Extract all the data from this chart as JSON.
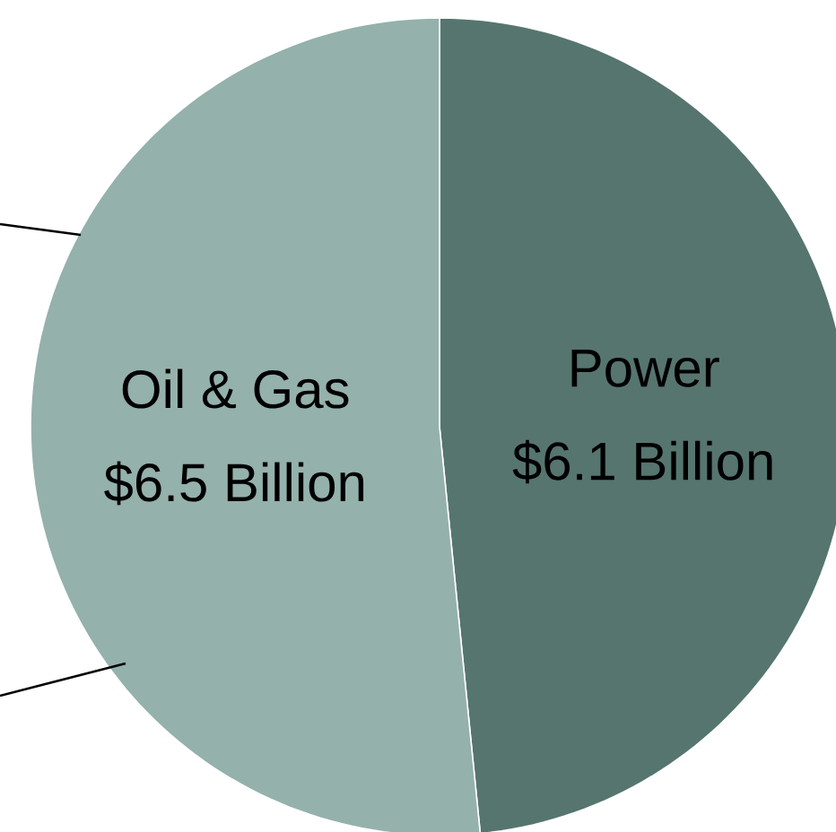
{
  "chart_data": {
    "type": "pie",
    "categories": [
      "Power",
      "Oil & Gas"
    ],
    "values": [
      6.1,
      6.5
    ],
    "colors": [
      "#56756f",
      "#94b1ab"
    ],
    "value_labels": [
      "$6.1 Billion",
      "$6.5 Billion"
    ]
  }
}
